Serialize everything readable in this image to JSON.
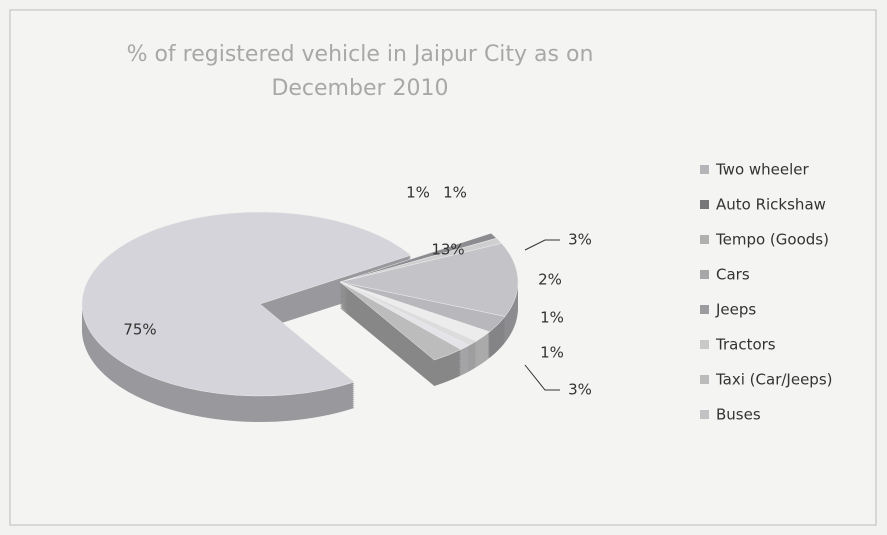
{
  "chart_data": {
    "type": "pie",
    "title": "% of registered vehicle in Jaipur City as on December 2010",
    "categories": [
      "Two wheeler",
      "Auto Rickshaw",
      "Tempo (Goods)",
      "Cars",
      "Jeeps",
      "Tractors",
      "Taxi (Car/Jeeps)",
      "Buses",
      null
    ],
    "values": [
      75,
      1,
      1,
      13,
      3,
      2,
      1,
      1,
      3
    ],
    "value_labels": [
      "75%",
      "1%",
      "1%",
      "13%",
      "3%",
      "2%",
      "1%",
      "1%",
      "3%"
    ],
    "colors": [
      "#d4d4da",
      "#8c8c90",
      "#cfcfcf",
      "#c4c4c8",
      "#b8b8bc",
      "#ececec",
      "#dcdcdc",
      "#e4e4e8",
      "#bcbcbc"
    ],
    "legend": "right"
  }
}
